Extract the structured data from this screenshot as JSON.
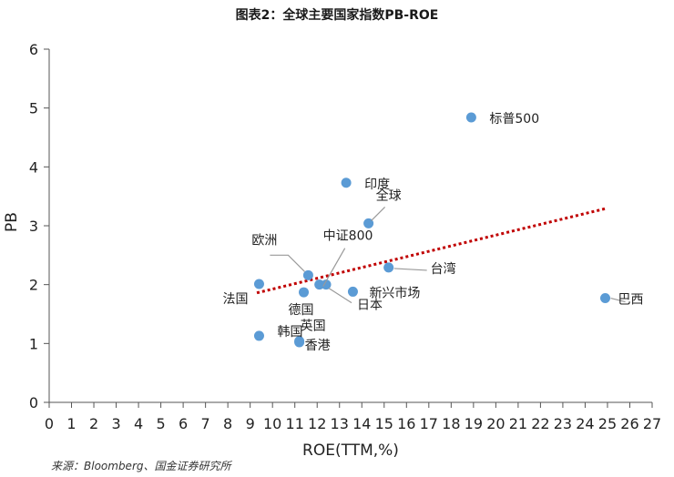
{
  "title": "图表2：全球主要国家指数PB-ROE",
  "source": "来源：Bloomberg、国金证券研究所",
  "chart_data": {
    "type": "scatter",
    "title": "图表2：全球主要国家指数PB-ROE",
    "xlabel": "ROE(TTM,%)",
    "ylabel": "PB",
    "xlim": [
      0,
      27
    ],
    "ylim": [
      0,
      6
    ],
    "xticks": [
      0,
      1,
      2,
      3,
      4,
      5,
      6,
      7,
      8,
      9,
      10,
      11,
      12,
      13,
      14,
      15,
      16,
      17,
      18,
      19,
      20,
      21,
      22,
      23,
      24,
      25,
      26,
      27
    ],
    "yticks": [
      0,
      1,
      2,
      3,
      4,
      5,
      6
    ],
    "grid": false,
    "point_color": "#5B9BD5",
    "trendline": {
      "style": "dotted",
      "color": "#C00000",
      "from": [
        9.3,
        1.86
      ],
      "to": [
        24.9,
        3.29
      ]
    },
    "points": [
      {
        "label": "标普500",
        "x": 18.9,
        "y": 4.84
      },
      {
        "label": "印度",
        "x": 13.3,
        "y": 3.73
      },
      {
        "label": "全球",
        "x": 14.3,
        "y": 3.04
      },
      {
        "label": "中证800",
        "x": 12.1,
        "y": 2.0
      },
      {
        "label": "欧洲",
        "x": 11.6,
        "y": 2.16
      },
      {
        "label": "台湾",
        "x": 15.2,
        "y": 2.29
      },
      {
        "label": "新兴市场",
        "x": 13.6,
        "y": 1.88
      },
      {
        "label": "日本",
        "x": 12.4,
        "y": 2.0
      },
      {
        "label": "德国",
        "x": 11.4,
        "y": 1.87
      },
      {
        "label": "法国",
        "x": 9.4,
        "y": 2.01
      },
      {
        "label": "英国",
        "x": 11.2,
        "y": 1.04
      },
      {
        "label": "香港",
        "x": 11.2,
        "y": 1.02
      },
      {
        "label": "韩国",
        "x": 9.4,
        "y": 1.13
      },
      {
        "label": "巴西",
        "x": 24.9,
        "y": 1.77
      }
    ]
  }
}
